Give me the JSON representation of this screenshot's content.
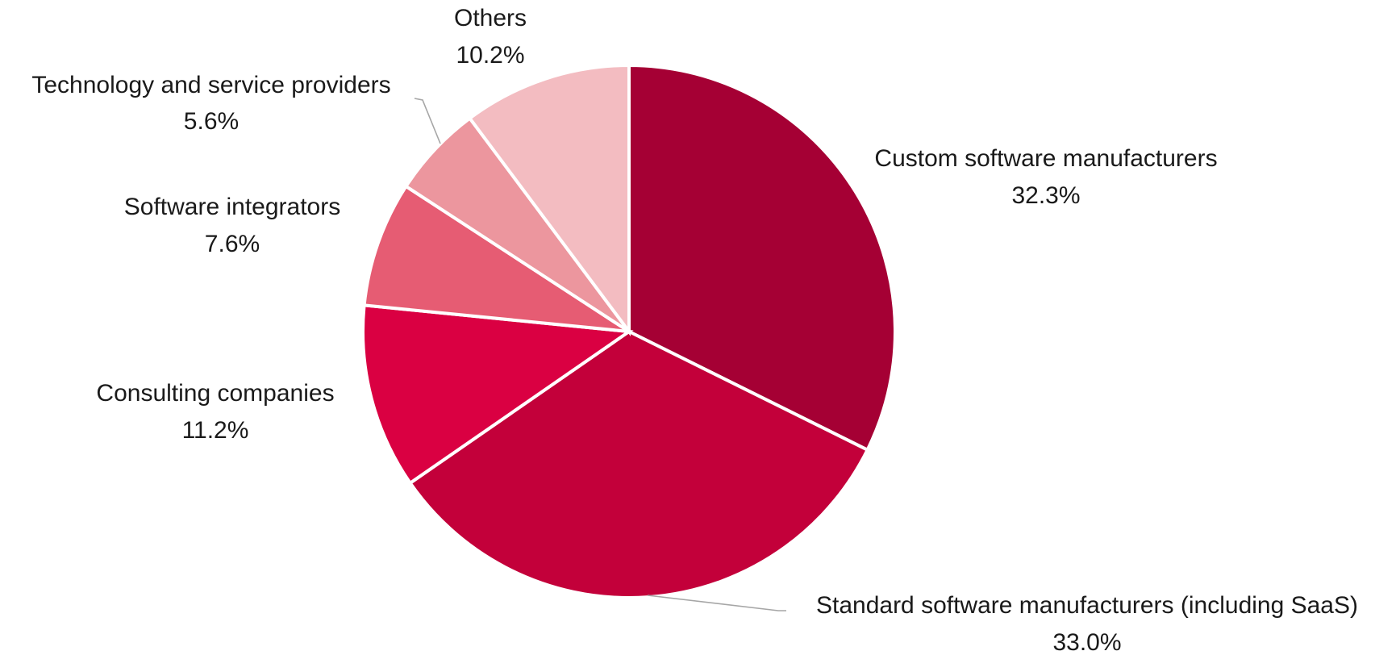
{
  "chart_data": {
    "type": "pie",
    "start_angle_deg": 0,
    "direction": "clockwise",
    "slices": [
      {
        "label": "Custom software manufacturers",
        "value": 32.3,
        "value_label": "32.3%",
        "color": "#a50034"
      },
      {
        "label": "Standard software manufacturers (including SaaS)",
        "value": 33.0,
        "value_label": "33.0%",
        "color": "#c3003a"
      },
      {
        "label": "Consulting companies",
        "value": 11.2,
        "value_label": "11.2%",
        "color": "#da0042"
      },
      {
        "label": "Software integrators",
        "value": 7.6,
        "value_label": "7.6%",
        "color": "#e65c73"
      },
      {
        "label": "Technology and service providers",
        "value": 5.6,
        "value_label": "5.6%",
        "color": "#ec969e"
      },
      {
        "label": "Others",
        "value": 10.2,
        "value_label": "10.2%",
        "color": "#f3bcc1"
      }
    ]
  }
}
